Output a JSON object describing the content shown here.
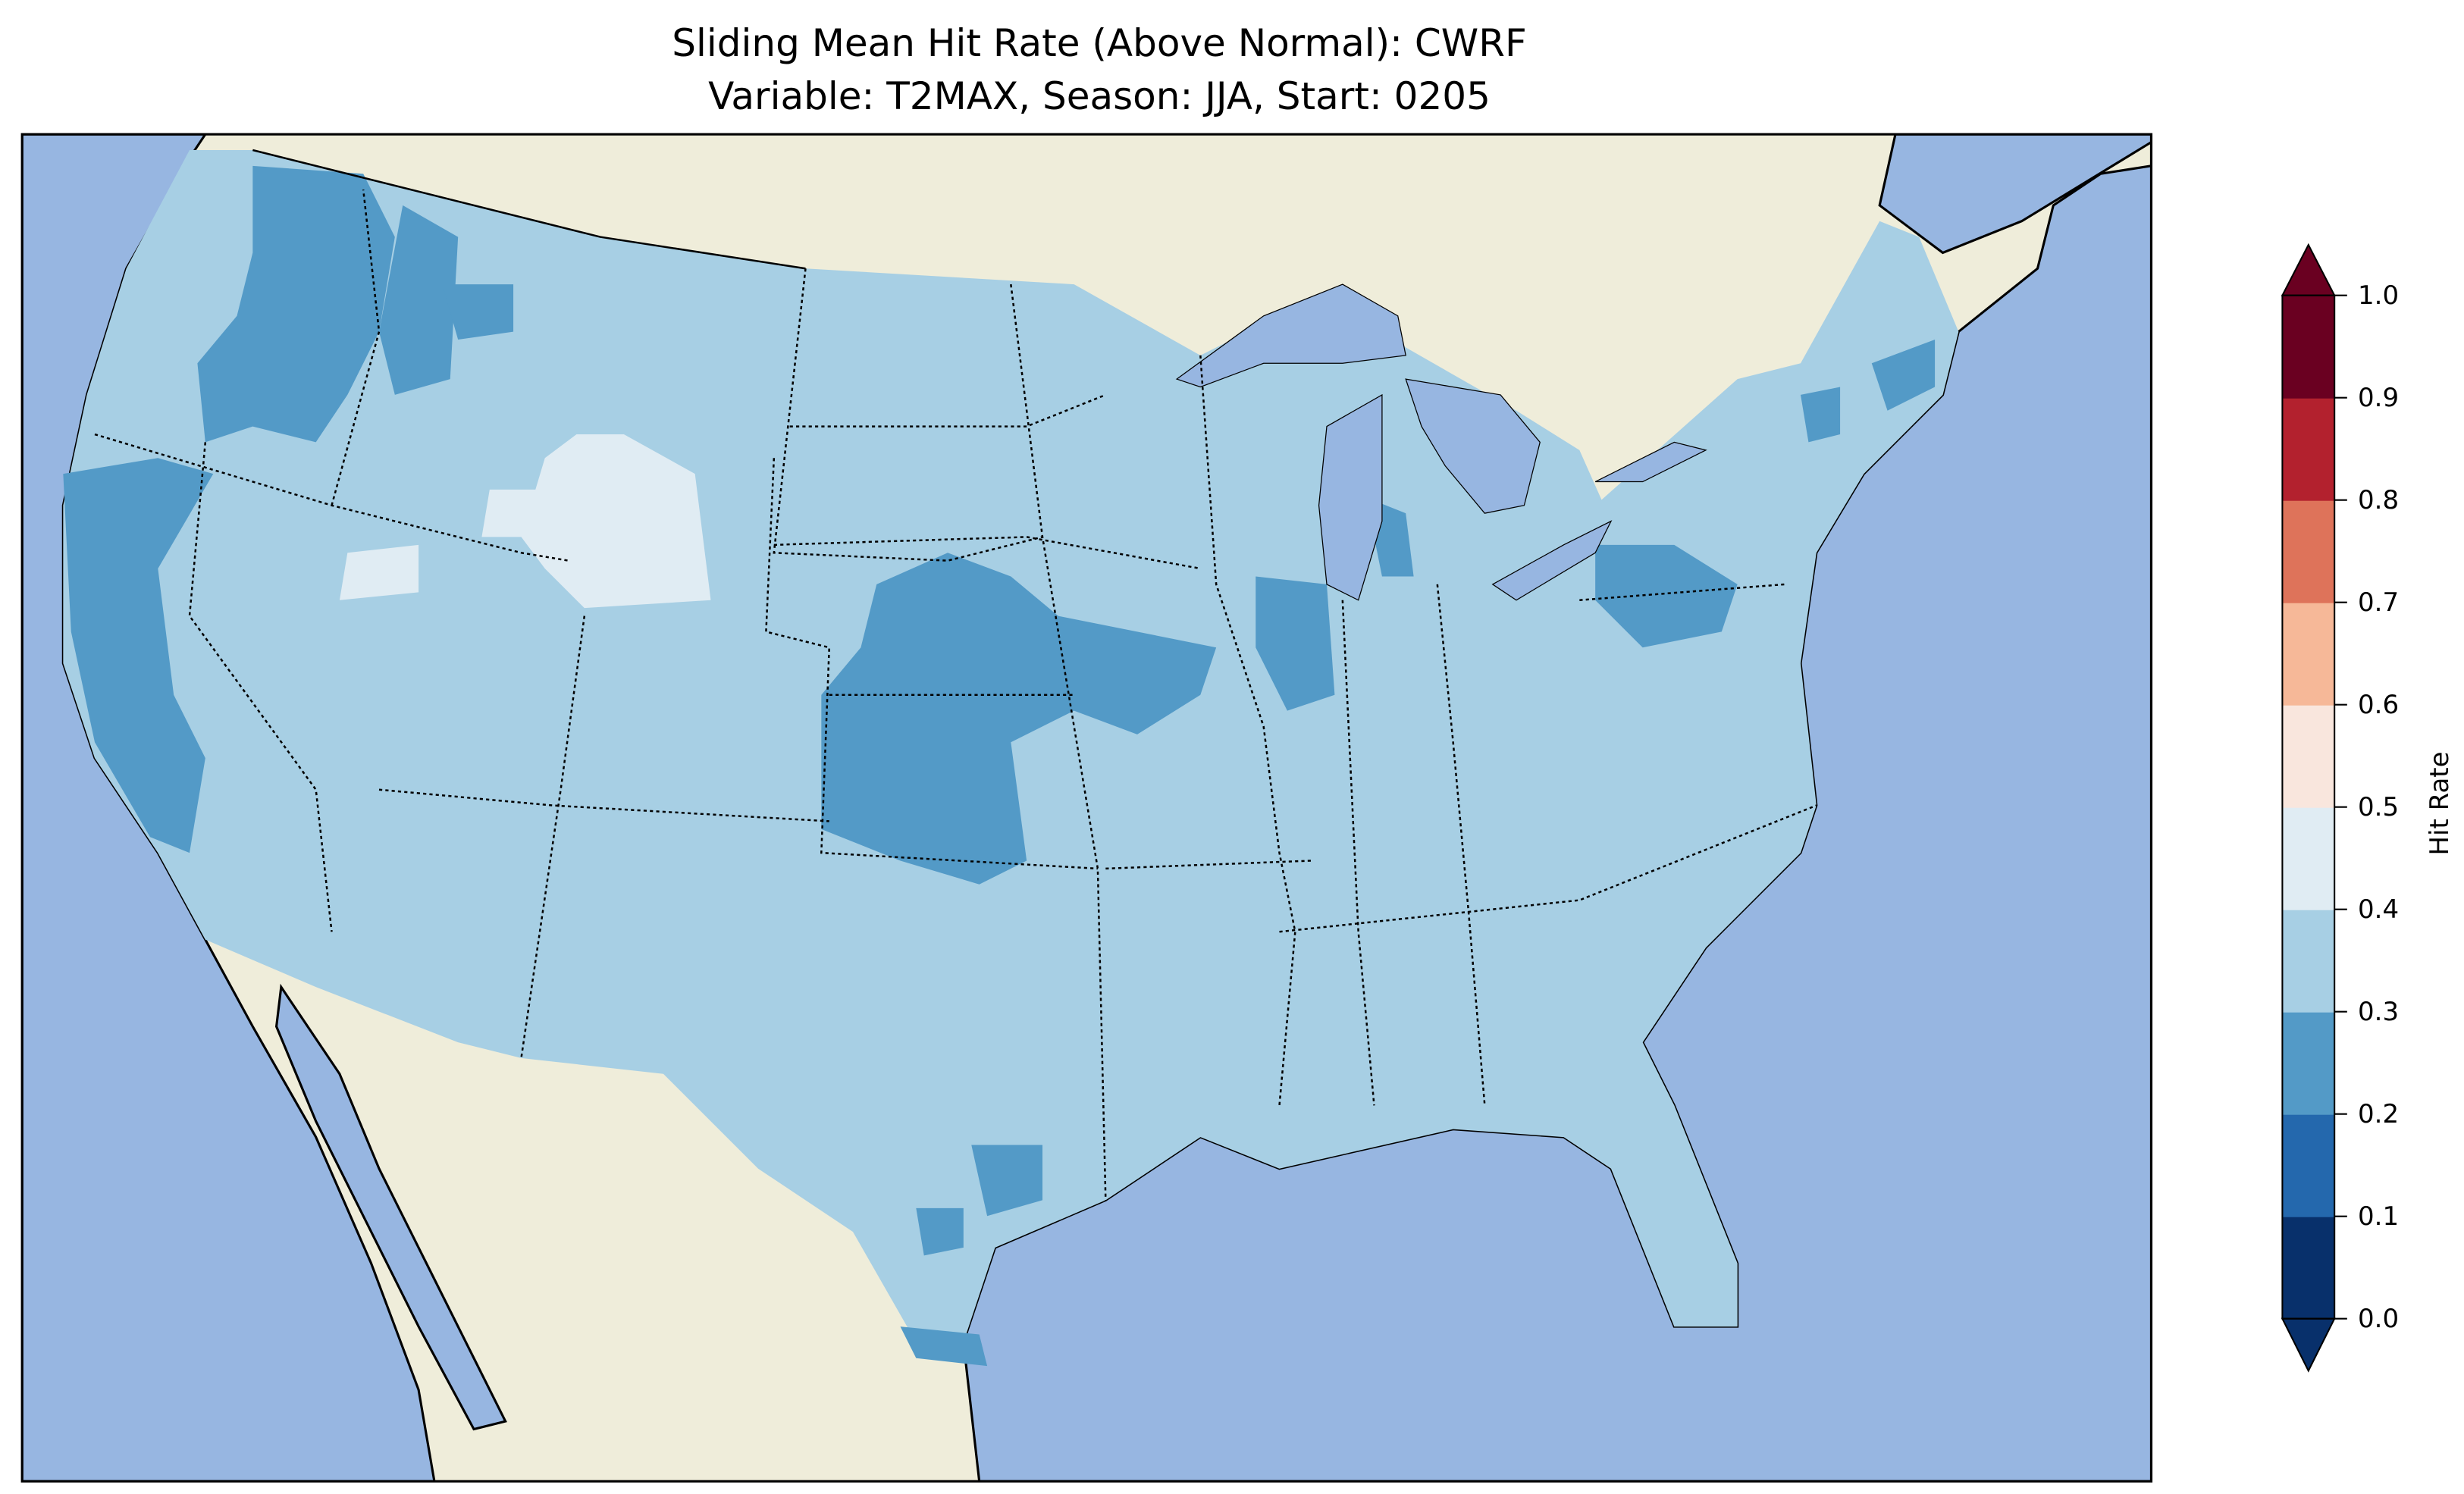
{
  "chart_data": {
    "type": "heatmap",
    "title": "Sliding Mean Hit Rate (Above Normal): CWRF",
    "subtitle": "Variable: T2MAX, Season: JJA, Start: 0205",
    "region": "Contiguous United States",
    "colorbar": {
      "label": "Hit Rate",
      "range": [
        0.0,
        1.0
      ],
      "ticks": [
        "0.0",
        "0.1",
        "0.2",
        "0.3",
        "0.4",
        "0.5",
        "0.6",
        "0.7",
        "0.8",
        "0.9",
        "1.0"
      ],
      "extend": "both",
      "colors": [
        "#08306b",
        "#2468ad",
        "#539ac7",
        "#a7cfe4",
        "#e0ecf3",
        "#f9e6dd",
        "#f6b898",
        "#de735a",
        "#b3212e",
        "#6a0021"
      ]
    },
    "dominant_value_range": [
      0.3,
      0.4
    ],
    "lower_regions_range": [
      0.2,
      0.3
    ],
    "higher_regions_range": [
      0.4,
      0.5
    ]
  },
  "colors": {
    "ocean": "#97b6e1",
    "land": "#efedda",
    "lakes": "#97b6e1"
  }
}
